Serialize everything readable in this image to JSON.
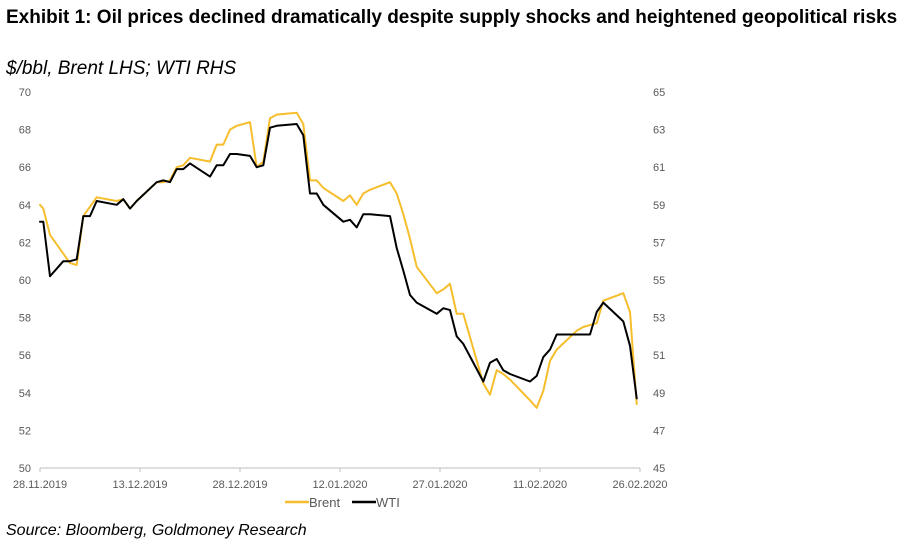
{
  "title": "Exhibit 1: Oil prices declined dramatically despite supply shocks and heightened geopolitical risks",
  "subtitle": "$/bbl, Brent LHS; WTI RHS",
  "source": "Source: Bloomberg, Goldmoney Research",
  "chart_data": {
    "type": "line",
    "title": "Exhibit 1: Oil prices declined dramatically despite supply shocks and heightened geopolitical risks",
    "subtitle": "$/bbl, Brent LHS; WTI RHS",
    "x_tick_labels": [
      "28.11.2019",
      "13.12.2019",
      "28.12.2019",
      "12.01.2020",
      "27.01.2020",
      "11.02.2020",
      "26.02.2020"
    ],
    "y_left": {
      "label": "Brent",
      "range": [
        50,
        70
      ],
      "ticks": [
        "70",
        "68",
        "66",
        "64",
        "62",
        "60",
        "58",
        "56",
        "54",
        "52",
        "50"
      ]
    },
    "y_right": {
      "label": "WTI",
      "range": [
        45,
        65
      ],
      "ticks": [
        "65",
        "63",
        "61",
        "59",
        "57",
        "55",
        "53",
        "51",
        "49",
        "47",
        "45"
      ]
    },
    "x_range_days": [
      0,
      90
    ],
    "colors": {
      "brent": "#F6BE2C",
      "wti": "#000000",
      "axis": "#BFBFBF",
      "ticks": "#595959"
    },
    "legend": {
      "position": "bottom-center",
      "entries": [
        "Brent",
        "WTI"
      ]
    },
    "series": [
      {
        "name": "Brent",
        "axis": "left",
        "x_days": [
          0,
          0.5,
          1.5,
          2.5,
          3.5,
          4.5,
          5.5,
          6.5,
          7.5,
          8.5,
          11.5,
          12.5,
          13.5,
          14.5,
          17.5,
          18.5,
          19.5,
          20.5,
          21.5,
          22.5,
          25.5,
          26.5,
          27.5,
          28.5,
          29.5,
          31.5,
          32.5,
          33.5,
          34.5,
          35.5,
          38.5,
          39.5,
          40.5,
          41.5,
          42.5,
          45.5,
          46.5,
          47.5,
          48.5,
          49.5,
          52.5,
          53.5,
          54.5,
          55.5,
          56.5,
          59.5,
          60.5,
          61.5,
          62.5,
          63.5,
          66.5,
          67.5,
          68.5,
          69.5,
          70.5,
          73.5,
          74.5,
          75.5,
          76.5,
          77.5,
          80.5,
          81.5,
          82.5,
          83.5,
          84.5,
          87.5,
          88.5,
          89.5
        ],
        "values": [
          64.0,
          63.8,
          62.4,
          61.9,
          61.4,
          60.9,
          60.8,
          63.4,
          63.9,
          64.4,
          64.2,
          64.3,
          63.8,
          64.2,
          65.2,
          65.2,
          65.3,
          66.0,
          66.1,
          66.5,
          66.3,
          67.2,
          67.2,
          68.0,
          68.2,
          68.4,
          66.0,
          66.3,
          68.6,
          68.8,
          68.9,
          68.3,
          65.3,
          65.3,
          64.9,
          64.2,
          64.5,
          64.0,
          64.6,
          64.8,
          65.2,
          64.6,
          63.5,
          62.2,
          60.7,
          59.3,
          59.5,
          59.8,
          58.2,
          58.2,
          54.5,
          53.9,
          55.2,
          55.0,
          54.7,
          53.6,
          53.2,
          54.1,
          55.7,
          56.3,
          57.3,
          57.5,
          57.6,
          57.7,
          58.9,
          59.3,
          58.3,
          53.4
        ]
      },
      {
        "name": "WTI",
        "axis": "right",
        "x_days": [
          0,
          0.5,
          1.5,
          2.5,
          3.5,
          4.5,
          5.5,
          6.5,
          7.5,
          8.5,
          11.5,
          12.5,
          13.5,
          14.5,
          17.5,
          18.5,
          19.5,
          20.5,
          21.5,
          22.5,
          25.5,
          26.5,
          27.5,
          28.5,
          29.5,
          31.5,
          32.5,
          33.5,
          34.5,
          35.5,
          38.5,
          39.5,
          40.5,
          41.5,
          42.5,
          45.5,
          46.5,
          47.5,
          48.5,
          49.5,
          52.5,
          53.5,
          54.5,
          55.5,
          56.5,
          59.5,
          60.5,
          61.5,
          62.5,
          63.5,
          66.5,
          67.5,
          68.5,
          69.5,
          70.5,
          73.5,
          74.5,
          75.5,
          76.5,
          77.5,
          80.5,
          81.5,
          82.5,
          83.5,
          84.5,
          87.5,
          88.5,
          89.5
        ],
        "values": [
          58.1,
          58.1,
          55.2,
          55.6,
          56.0,
          56.0,
          56.1,
          58.4,
          58.4,
          59.2,
          59.0,
          59.3,
          58.8,
          59.2,
          60.2,
          60.3,
          60.2,
          60.9,
          60.9,
          61.2,
          60.5,
          61.1,
          61.1,
          61.7,
          61.7,
          61.6,
          61.0,
          61.1,
          63.1,
          63.2,
          63.3,
          62.7,
          59.6,
          59.6,
          59.0,
          58.1,
          58.2,
          57.8,
          58.5,
          58.5,
          58.4,
          56.7,
          55.5,
          54.2,
          53.8,
          53.2,
          53.5,
          53.4,
          52.0,
          51.6,
          49.6,
          50.6,
          50.8,
          50.2,
          50.0,
          49.6,
          49.9,
          50.9,
          51.3,
          52.1,
          52.1,
          52.1,
          52.1,
          53.3,
          53.8,
          52.8,
          51.5,
          48.7
        ]
      }
    ]
  }
}
